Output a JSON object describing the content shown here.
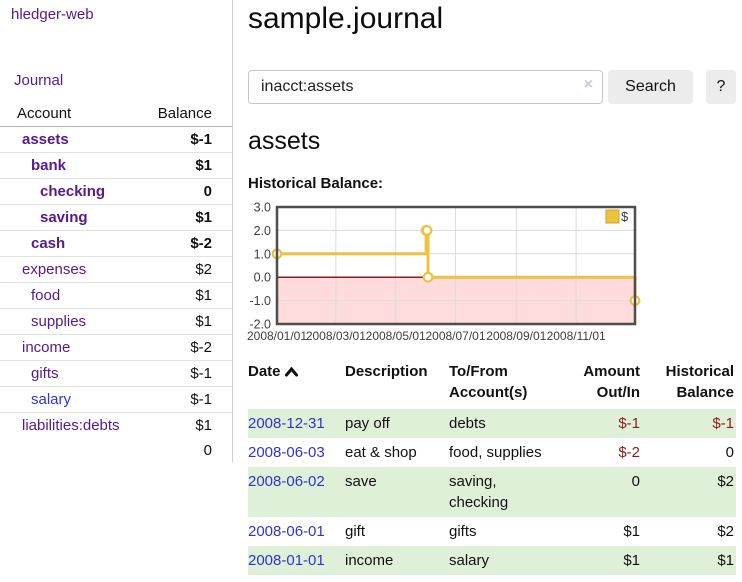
{
  "app": {
    "brand": "hledger-web",
    "nav_journal": "Journal"
  },
  "sidebar": {
    "headers": [
      "Account",
      "Balance"
    ],
    "rows": [
      {
        "name": "assets",
        "depth": 1,
        "bold": true,
        "balance": "$-1",
        "neg": "strong"
      },
      {
        "name": "bank",
        "depth": 2,
        "bold": true,
        "balance": "$1"
      },
      {
        "name": "checking",
        "depth": 3,
        "bold": true,
        "balance": "0"
      },
      {
        "name": "saving",
        "depth": 3,
        "bold": true,
        "balance": "$1"
      },
      {
        "name": "cash",
        "depth": 2,
        "bold": true,
        "balance": "$-2",
        "neg": "strong"
      },
      {
        "name": "expenses",
        "depth": 1,
        "bold": false,
        "balance": "$2"
      },
      {
        "name": "food",
        "depth": 2,
        "bold": false,
        "balance": "$1"
      },
      {
        "name": "supplies",
        "depth": 2,
        "bold": false,
        "balance": "$1"
      },
      {
        "name": "income",
        "depth": 1,
        "bold": false,
        "balance": "$-2",
        "neg": "muted"
      },
      {
        "name": "gifts",
        "depth": 2,
        "bold": false,
        "balance": "$-1",
        "neg": "muted"
      },
      {
        "name": "salary",
        "depth": 2,
        "bold": false,
        "balance": "$-1",
        "neg": "muted",
        "link_color": "blue"
      },
      {
        "name": "liabilities:debts",
        "depth": 1,
        "bold": false,
        "balance": "$1"
      }
    ],
    "total": "0"
  },
  "main": {
    "title": "sample.journal",
    "search": {
      "value": "inacct:assets",
      "clear_icon": "×",
      "button_label": "Search",
      "help_label": "?"
    },
    "account_heading": "assets",
    "chart_heading": "Historical Balance:"
  },
  "chart_data": {
    "type": "line",
    "step": true,
    "title": "Historical Balance:",
    "series": [
      {
        "name": "$",
        "color": "#edc240",
        "points": [
          [
            "2008-01-01",
            1
          ],
          [
            "2008-06-01",
            2
          ],
          [
            "2008-06-02",
            2
          ],
          [
            "2008-06-03",
            0
          ],
          [
            "2008-12-31",
            -1
          ]
        ]
      }
    ],
    "xrange": [
      "2008-01-01",
      "2008-12-31"
    ],
    "ylim": [
      -2,
      3
    ],
    "x_ticks": [
      "2008/01/01",
      "2008/03/01",
      "2008/05/01",
      "2008/07/01",
      "2008/09/01",
      "2008/11/01"
    ],
    "y_ticks": [
      "3.0",
      "2.0",
      "1.0",
      "0.0",
      "-1.0",
      "-2.0"
    ],
    "legend": {
      "label": "$",
      "position": "top-right"
    },
    "negative_region_color": "#ffdbdb",
    "zero_line_color": "#8b1f1f",
    "grid": true
  },
  "register": {
    "headers": [
      "Date",
      "Description",
      "To/From Account(s)",
      "Amount Out/In",
      "Historical Balance"
    ],
    "rows": [
      {
        "date": "2008-12-31",
        "description": "pay off",
        "accounts": "debts",
        "amount": "$-1",
        "balance": "$-1",
        "shaded": true
      },
      {
        "date": "2008-06-03",
        "description": "eat & shop",
        "accounts": "food, supplies",
        "amount": "$-2",
        "balance": "0",
        "shaded": false
      },
      {
        "date": "2008-06-02",
        "description": "save",
        "accounts": "saving, checking",
        "amount": "0",
        "balance": "$2",
        "shaded": true
      },
      {
        "date": "2008-06-01",
        "description": "gift",
        "accounts": "gifts",
        "amount": "$1",
        "balance": "$2",
        "shaded": false
      },
      {
        "date": "2008-01-01",
        "description": "income",
        "accounts": "salary",
        "amount": "$1",
        "balance": "$1",
        "shaded": true
      }
    ]
  }
}
